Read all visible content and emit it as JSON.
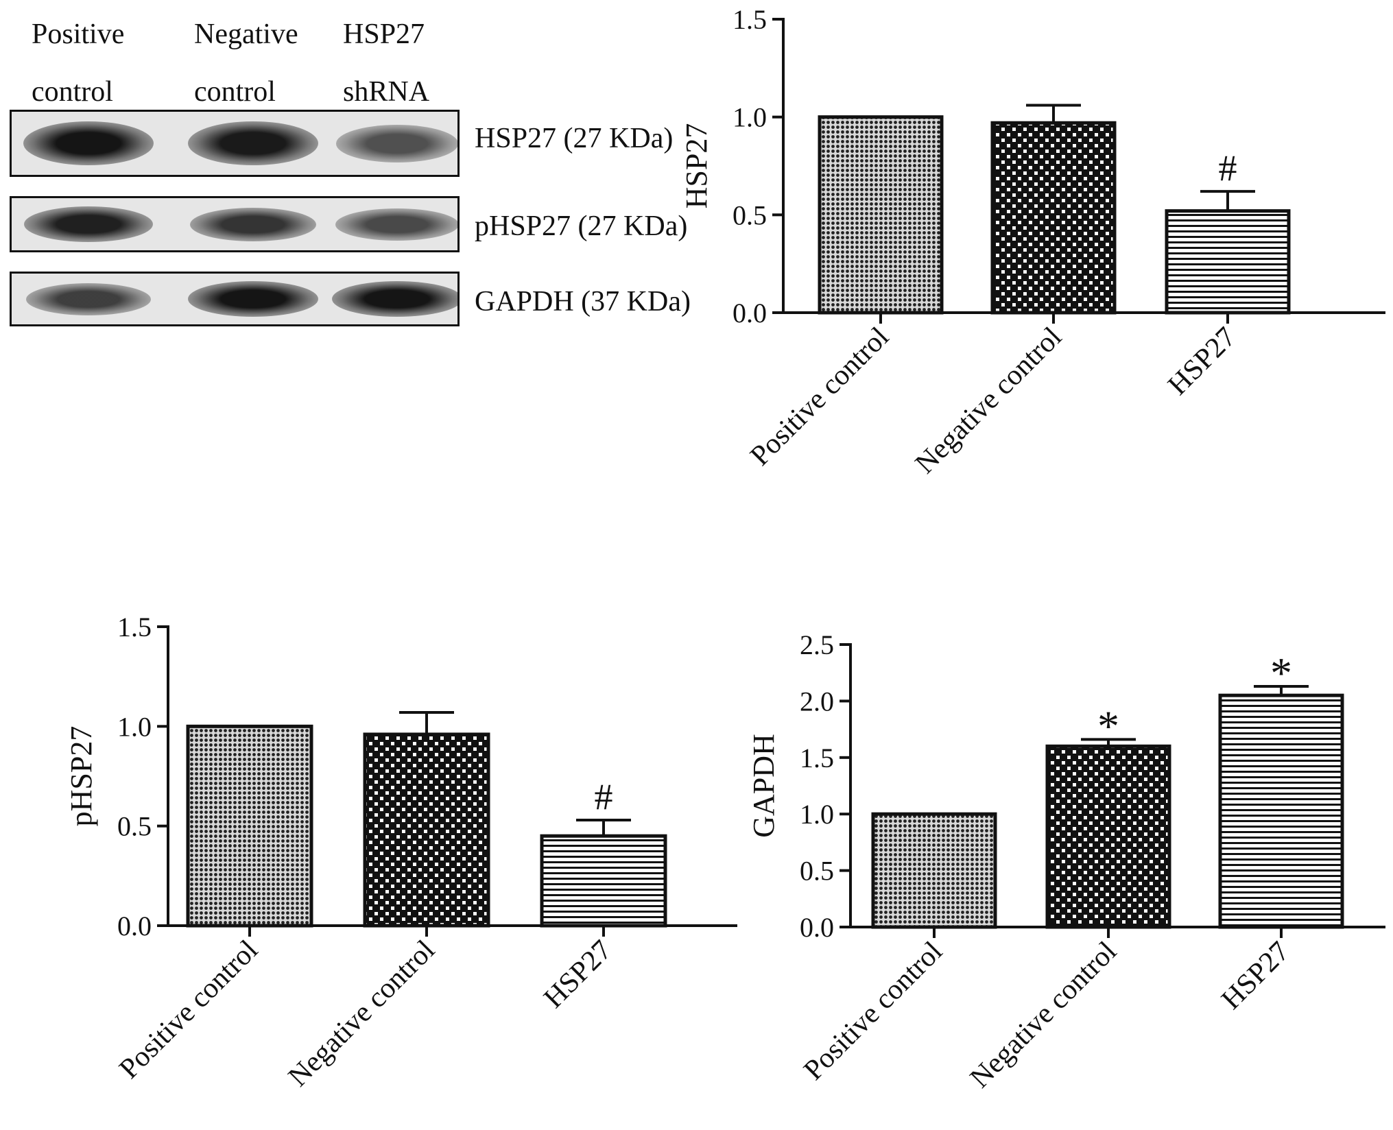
{
  "blot": {
    "lanes": [
      {
        "line1": "Positive",
        "line2": "control"
      },
      {
        "line1": "Negative",
        "line2": "control"
      },
      {
        "line1": "HSP27",
        "line2": "shRNA"
      }
    ],
    "rows": [
      {
        "label": "HSP27 (27 KDa)",
        "intensity": [
          1.0,
          0.98,
          0.72
        ]
      },
      {
        "label": "pHSP27 (27 KDa)",
        "intensity": [
          0.95,
          0.85,
          0.75
        ]
      },
      {
        "label": "GAPDH (37 KDa)",
        "intensity": [
          0.8,
          1.0,
          1.0
        ]
      }
    ]
  },
  "chart_data": [
    {
      "type": "bar",
      "categories": [
        "Positive control",
        "Negative control",
        "HSP27"
      ],
      "values": [
        1.0,
        0.97,
        0.52
      ],
      "errors": [
        0,
        0.09,
        0.1
      ],
      "annotations": [
        "",
        "",
        "#"
      ],
      "title": "",
      "xlabel": "",
      "ylabel": "HSP27",
      "ylim": [
        0,
        1.5
      ],
      "yticks": [
        "0.0",
        "0.5",
        "1.0",
        "1.5"
      ],
      "patterns": [
        "dots",
        "checker",
        "stripes"
      ]
    },
    {
      "type": "bar",
      "categories": [
        "Positive control",
        "Negative control",
        "HSP27"
      ],
      "values": [
        1.0,
        0.96,
        0.45
      ],
      "errors": [
        0,
        0.11,
        0.08
      ],
      "annotations": [
        "",
        "",
        "#"
      ],
      "title": "",
      "xlabel": "",
      "ylabel": "pHSP27",
      "ylim": [
        0,
        1.5
      ],
      "yticks": [
        "0.0",
        "0.5",
        "1.0",
        "1.5"
      ],
      "patterns": [
        "dots",
        "checker",
        "stripes"
      ]
    },
    {
      "type": "bar",
      "categories": [
        "Positive control",
        "Negative control",
        "HSP27"
      ],
      "values": [
        1.0,
        1.6,
        2.05
      ],
      "errors": [
        0,
        0.06,
        0.08
      ],
      "annotations": [
        "",
        "*",
        "*"
      ],
      "title": "",
      "xlabel": "",
      "ylabel": "GAPDH",
      "ylim": [
        0,
        2.5
      ],
      "yticks": [
        "0.0",
        "0.5",
        "1.0",
        "1.5",
        "2.0",
        "2.5"
      ],
      "patterns": [
        "dots",
        "checker",
        "stripes"
      ]
    }
  ]
}
